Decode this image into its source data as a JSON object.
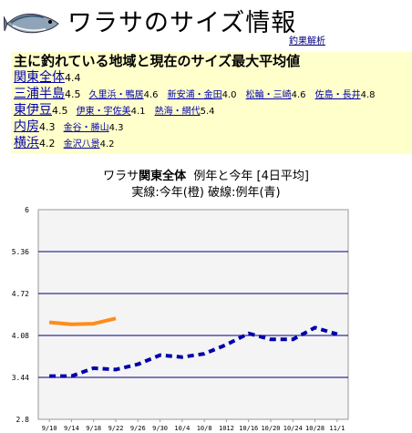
{
  "header": {
    "title": "ワラサのサイズ情報",
    "analysis_link": "釣果解析",
    "icon": "fish-icon"
  },
  "summary": {
    "title": "主に釣れている地域と現在のサイズ最大平均値",
    "rows": [
      {
        "region": "関東全体",
        "value": "4.4",
        "subs": []
      },
      {
        "region": "三浦半島",
        "value": "4.5",
        "subs": [
          {
            "name": "久里浜・鴨居",
            "value": "4.6"
          },
          {
            "name": "新安浦・金田",
            "value": "4.0"
          },
          {
            "name": "松輪・三崎",
            "value": "4.6"
          },
          {
            "name": "佐島・長井",
            "value": "4.8"
          }
        ]
      },
      {
        "region": "東伊豆",
        "value": "4.5",
        "subs": [
          {
            "name": "伊東・宇佐美",
            "value": "4.1"
          },
          {
            "name": "熱海・網代",
            "value": "5.4"
          }
        ]
      },
      {
        "region": "内房",
        "value": "4.3",
        "subs": [
          {
            "name": "金谷・勝山",
            "value": "4.3"
          }
        ]
      },
      {
        "region": "横浜",
        "value": "4.2",
        "subs": [
          {
            "name": "金沢八景",
            "value": "4.2"
          }
        ]
      }
    ]
  },
  "chart_data": {
    "type": "line",
    "title_prefix": "ワラサ",
    "title_region": "関東全体",
    "title_suffix": "例年と今年 [4日平均]",
    "subtitle": "実線:今年(橙) 破線:例年(青)",
    "categories": [
      "9/10",
      "9/14",
      "9/18",
      "9/22",
      "9/26",
      "9/30",
      "10/4",
      "10/8",
      "10/12",
      "10/16",
      "10/20",
      "10/24",
      "10/28",
      "11/1"
    ],
    "x_tick_labels": [
      "9/10",
      "9/14",
      "9/18",
      "9/22",
      "9/26",
      "9/30",
      "10/4",
      "10/8",
      "1012",
      "10/16",
      "10/20",
      "10/24",
      "10/28",
      "11/1"
    ],
    "y_ticks": [
      "6",
      "5.36",
      "4.72",
      "4.08",
      "3.44",
      "2.8"
    ],
    "ylim": [
      2.8,
      6
    ],
    "grid": true,
    "series": [
      {
        "name": "今年",
        "style": "solid",
        "color": "#ff8c1a",
        "values": [
          4.28,
          4.25,
          4.26,
          4.34,
          null,
          null,
          null,
          null,
          null,
          null,
          null,
          null,
          null,
          null
        ]
      },
      {
        "name": "例年",
        "style": "dashed",
        "color": "#0000aa",
        "values": [
          3.46,
          3.46,
          3.58,
          3.56,
          3.64,
          3.78,
          3.75,
          3.8,
          3.94,
          4.11,
          4.02,
          4.02,
          4.2,
          4.1
        ]
      }
    ],
    "colors": {
      "plot_background": "#f4f4f4",
      "grid_line": "#000080",
      "axis": "#999999"
    }
  }
}
